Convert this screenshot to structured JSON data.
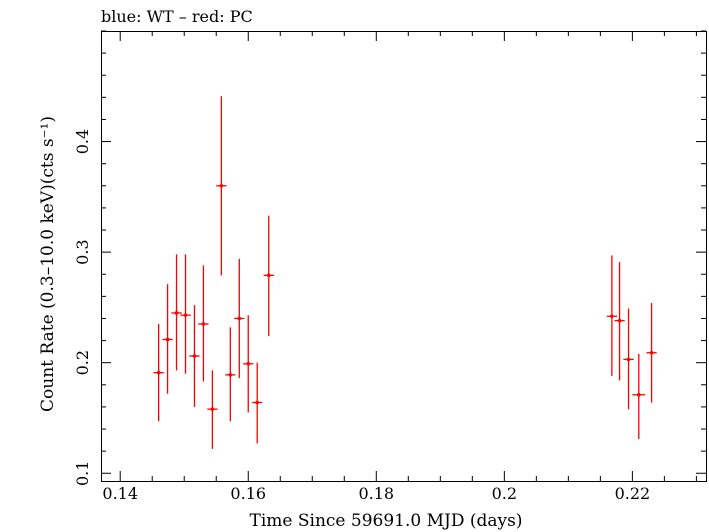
{
  "chart_data": {
    "type": "scatter",
    "title": "blue: WT – red: PC",
    "xlabel": "Time Since 59691.0 MJD (days)",
    "ylabel": "Count Rate (0.3–10.0 keV)(cts s⁻¹)",
    "xlim": [
      0.137,
      0.2315
    ],
    "ylim": [
      0.093,
      0.5
    ],
    "x_ticks": [
      "0.14",
      "0.16",
      "0.18",
      "0.2",
      "0.22"
    ],
    "y_ticks": [
      "0.1",
      "0.2",
      "0.3",
      "0.4"
    ],
    "grid": false,
    "series": [
      {
        "color": "#ff0000",
        "points": [
          {
            "x": 0.146,
            "y": 0.191,
            "xerr": 0.0008,
            "ylo": 0.147,
            "yhi": 0.235
          },
          {
            "x": 0.1474,
            "y": 0.221,
            "xerr": 0.0008,
            "ylo": 0.172,
            "yhi": 0.271
          },
          {
            "x": 0.1488,
            "y": 0.245,
            "xerr": 0.0008,
            "ylo": 0.193,
            "yhi": 0.298
          },
          {
            "x": 0.1502,
            "y": 0.243,
            "xerr": 0.0008,
            "ylo": 0.19,
            "yhi": 0.298
          },
          {
            "x": 0.1516,
            "y": 0.206,
            "xerr": 0.0008,
            "ylo": 0.16,
            "yhi": 0.252
          },
          {
            "x": 0.153,
            "y": 0.235,
            "xerr": 0.0008,
            "ylo": 0.183,
            "yhi": 0.288
          },
          {
            "x": 0.1544,
            "y": 0.158,
            "xerr": 0.0008,
            "ylo": 0.122,
            "yhi": 0.193
          },
          {
            "x": 0.1558,
            "y": 0.36,
            "xerr": 0.0008,
            "ylo": 0.279,
            "yhi": 0.441
          },
          {
            "x": 0.1572,
            "y": 0.189,
            "xerr": 0.0008,
            "ylo": 0.147,
            "yhi": 0.232
          },
          {
            "x": 0.1586,
            "y": 0.24,
            "xerr": 0.0008,
            "ylo": 0.186,
            "yhi": 0.294
          },
          {
            "x": 0.16,
            "y": 0.199,
            "xerr": 0.0008,
            "ylo": 0.155,
            "yhi": 0.243
          },
          {
            "x": 0.1614,
            "y": 0.164,
            "xerr": 0.0008,
            "ylo": 0.127,
            "yhi": 0.2
          },
          {
            "x": 0.1632,
            "y": 0.279,
            "xerr": 0.0008,
            "ylo": 0.224,
            "yhi": 0.333
          },
          {
            "x": 0.2168,
            "y": 0.242,
            "xerr": 0.0008,
            "ylo": 0.188,
            "yhi": 0.297
          },
          {
            "x": 0.218,
            "y": 0.238,
            "xerr": 0.0008,
            "ylo": 0.184,
            "yhi": 0.291
          },
          {
            "x": 0.2194,
            "y": 0.203,
            "xerr": 0.0008,
            "ylo": 0.158,
            "yhi": 0.249
          },
          {
            "x": 0.221,
            "y": 0.171,
            "xerr": 0.001,
            "ylo": 0.131,
            "yhi": 0.208
          },
          {
            "x": 0.223,
            "y": 0.209,
            "xerr": 0.0008,
            "ylo": 0.164,
            "yhi": 0.254
          }
        ]
      }
    ]
  }
}
